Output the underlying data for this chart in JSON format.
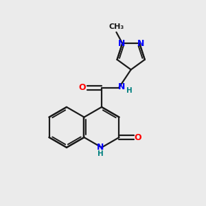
{
  "background_color": "#ebebeb",
  "bond_color": "#1a1a1a",
  "nitrogen_color": "#0000ff",
  "oxygen_color": "#ff0000",
  "nh_color": "#008080",
  "figsize": [
    3.0,
    3.0
  ],
  "dpi": 100,
  "lw": 1.6,
  "lw2": 1.4,
  "font_size": 9,
  "font_size_h": 7.5,
  "xlim": [
    0,
    10
  ],
  "ylim": [
    0,
    10
  ]
}
